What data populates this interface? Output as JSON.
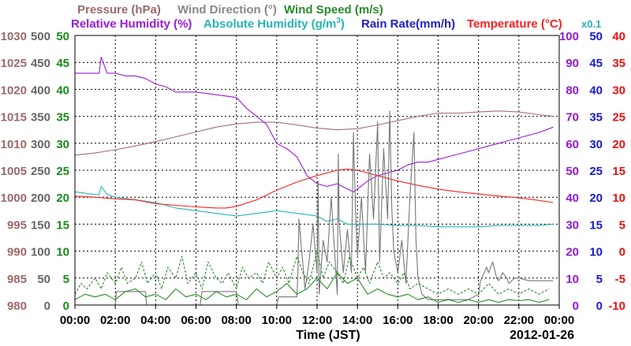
{
  "chart_data": {
    "type": "line",
    "legend": [
      {
        "id": "pressure",
        "label": "Pressure (hPa)",
        "color": "#9b6a6a"
      },
      {
        "id": "wind_dir",
        "label": "Wind Direction (°)",
        "color": "#888888"
      },
      {
        "id": "wind_speed",
        "label": "Wind Speed (m/s)",
        "color": "#2a8a2a"
      },
      {
        "id": "rh",
        "label": "Relative Humidity (%)",
        "color": "#9a1ae0"
      },
      {
        "id": "abs_hum",
        "label": "Absolute Humidity (g/m",
        "label_sup": "3",
        "label_end": ")",
        "color": "#28b4b4"
      },
      {
        "id": "rain",
        "label": "Rain Rate(mm/h)",
        "color": "#1e1ecc"
      },
      {
        "id": "temp",
        "label": "Temperature (°C)",
        "color": "#ff2020"
      },
      {
        "id": "scale",
        "label": "x0.1",
        "color": "#28b4b4"
      }
    ],
    "axes": {
      "pressure": {
        "ticks": [
          "980",
          "985",
          "990",
          "995",
          "1000",
          "1005",
          "1010",
          "1015",
          "1020",
          "1025",
          "1030"
        ],
        "range": [
          980,
          1030
        ],
        "color": "#9b6a6a"
      },
      "wind_dir": {
        "ticks": [
          "0",
          "50",
          "100",
          "150",
          "200",
          "250",
          "300",
          "350",
          "400",
          "450",
          "500"
        ],
        "range": [
          0,
          500
        ],
        "color": "#666666"
      },
      "wind_speed": {
        "ticks": [
          "0",
          "5",
          "10",
          "15",
          "20",
          "25",
          "30",
          "35",
          "40",
          "45",
          "50"
        ],
        "range": [
          0,
          50
        ],
        "color": "#1a8a1a"
      },
      "humidity": {
        "ticks": [
          "0",
          "10",
          "20",
          "30",
          "40",
          "50",
          "60",
          "70",
          "80",
          "90",
          "100"
        ],
        "range": [
          0,
          100
        ],
        "color": "#8e1ad6"
      },
      "rain": {
        "ticks": [
          "0",
          "5",
          "10",
          "15",
          "20",
          "25",
          "30",
          "35",
          "40",
          "45",
          "50"
        ],
        "range": [
          0,
          50
        ],
        "color": "#1a1acc"
      },
      "temp": {
        "ticks": [
          "-10",
          "-5",
          "0",
          "5",
          "10",
          "15",
          "20",
          "25",
          "30",
          "35",
          "40"
        ],
        "range": [
          -10,
          40
        ],
        "color": "#ee1010"
      }
    },
    "x_ticks": [
      "00:00",
      "02:00",
      "04:00",
      "06:00",
      "08:00",
      "10:00",
      "12:00",
      "14:00",
      "16:00",
      "18:00",
      "20:00",
      "22:00",
      "00:00"
    ],
    "x_range_hours": [
      0,
      24
    ],
    "xlabel": "Time (JST)",
    "date": "2012-01-26",
    "grid": true,
    "series": [
      {
        "name": "Pressure (hPa)",
        "axis": "pressure",
        "color": "#a07070",
        "x": [
          0,
          1,
          2,
          3,
          4,
          5,
          6,
          7,
          8,
          9,
          10,
          11,
          12,
          13,
          14,
          15,
          16,
          17,
          18,
          19,
          20,
          21,
          22,
          23,
          23.7
        ],
        "y": [
          1007.8,
          1008.2,
          1008.8,
          1009.5,
          1010.3,
          1011.2,
          1012.1,
          1013.0,
          1013.6,
          1013.9,
          1013.9,
          1013.4,
          1012.8,
          1012.5,
          1012.7,
          1013.4,
          1014.2,
          1015.0,
          1015.6,
          1015.6,
          1015.8,
          1016.0,
          1015.8,
          1015.3,
          1015.0
        ]
      },
      {
        "name": "Relative Humidity (%)",
        "axis": "humidity",
        "color": "#9a1ae0",
        "x": [
          0,
          1.2,
          1.3,
          1.6,
          2.0,
          2.5,
          3.0,
          3.5,
          4.0,
          4.5,
          5.0,
          5.5,
          6.0,
          7.0,
          8.0,
          8.5,
          9.0,
          9.5,
          10.0,
          10.5,
          11.0,
          11.5,
          12.0,
          12.5,
          13.0,
          13.5,
          13.8,
          14.0,
          14.5,
          15.0,
          15.5,
          16.0,
          16.5,
          17.0,
          17.5,
          18.0,
          18.5,
          19.0,
          19.5,
          20.0,
          20.5,
          21.0,
          21.5,
          22.0,
          22.5,
          23.0,
          23.7
        ],
        "y": [
          86,
          86,
          92,
          86,
          86,
          85,
          85,
          84,
          82,
          81,
          79,
          79,
          79,
          78,
          77,
          73,
          70,
          67,
          60,
          58,
          55,
          48,
          45,
          44,
          45,
          43,
          42,
          43,
          46,
          48,
          49,
          50,
          52,
          53,
          53,
          54,
          55,
          56,
          57,
          58,
          59,
          60,
          61,
          62,
          63,
          64,
          66
        ]
      },
      {
        "name": "Absolute Humidity (g/m3) x0.1",
        "axis": "humidity",
        "color": "#28b4b4",
        "x": [
          0,
          1,
          1.2,
          1.3,
          1.6,
          2,
          3,
          4,
          5,
          6,
          7,
          8,
          9,
          10,
          11,
          12,
          12.5,
          13,
          13.5,
          14,
          15,
          16,
          17,
          18,
          19,
          20,
          21,
          22,
          23,
          23.7
        ],
        "y": [
          42,
          41,
          41,
          44,
          41,
          40,
          39,
          38,
          36,
          35,
          34,
          33,
          34,
          35,
          34,
          33,
          31,
          32,
          30,
          30,
          30,
          29.5,
          29.5,
          29,
          29,
          29,
          29.5,
          29.5,
          29.5,
          30
        ]
      },
      {
        "name": "Temperature (°C)",
        "axis": "temp",
        "color": "#ff2020",
        "x": [
          0,
          1,
          2,
          3,
          4,
          5,
          6,
          7,
          7.5,
          8,
          9,
          10,
          11,
          12,
          13,
          13.5,
          14,
          15,
          16,
          17,
          18,
          19,
          20,
          21,
          22,
          23,
          23.7
        ],
        "y": [
          10.2,
          10.0,
          9.7,
          9.5,
          8.8,
          8.5,
          8.2,
          8.0,
          8.0,
          8.3,
          9.5,
          11.3,
          12.8,
          14.0,
          15.0,
          15.2,
          15.0,
          14.0,
          13.0,
          12.2,
          11.5,
          11.0,
          10.6,
          10.2,
          9.9,
          9.4,
          9.0
        ]
      },
      {
        "name": "Wind Direction (°)",
        "axis": "wind_dir",
        "color": "#777777",
        "x": [
          0,
          2,
          2.05,
          3.5,
          3.55,
          6.2,
          6.3,
          8,
          8.1,
          10,
          10.1,
          11,
          11.05,
          11.1,
          11.4,
          11.6,
          11.8,
          12,
          12.05,
          12.1,
          12.3,
          12.5,
          12.7,
          13,
          13.05,
          13.1,
          13.3,
          13.5,
          13.7,
          13.8,
          13.9,
          14,
          14.2,
          14.4,
          14.6,
          14.8,
          15,
          15.05,
          15.1,
          15.3,
          15.5,
          15.6,
          15.7,
          15.8,
          16,
          16.2,
          16.4,
          16.6,
          16.8,
          16.9,
          17,
          17.2,
          17.5,
          18,
          19,
          19.5,
          20,
          20.1,
          20.4,
          20.5,
          20.7,
          20.9,
          21,
          21.2,
          21.4,
          21.5,
          21.8,
          22,
          22.5,
          23,
          23.7
        ],
        "y": [
          0,
          0,
          25,
          25,
          0,
          0,
          25,
          25,
          0,
          0,
          15,
          15,
          60,
          160,
          30,
          80,
          150,
          60,
          230,
          20,
          120,
          80,
          200,
          20,
          280,
          150,
          60,
          140,
          60,
          320,
          180,
          90,
          200,
          60,
          280,
          160,
          340,
          200,
          80,
          290,
          160,
          360,
          180,
          100,
          60,
          120,
          40,
          200,
          320,
          120,
          50,
          20,
          10,
          10,
          10,
          10,
          20,
          45,
          70,
          60,
          80,
          50,
          45,
          60,
          50,
          40,
          50,
          50,
          45,
          45,
          45
        ]
      },
      {
        "name": "Wind Speed (m/s)",
        "axis": "wind_speed",
        "color": "#2a8a2a",
        "x": [
          0,
          0.5,
          1,
          1.5,
          2,
          2.5,
          3,
          3.5,
          4,
          4.5,
          5,
          5.5,
          6,
          6.5,
          7,
          7.5,
          8,
          8.5,
          9,
          9.5,
          10,
          10.5,
          11,
          11.5,
          12,
          12.5,
          13,
          13.5,
          14,
          14.5,
          15,
          15.5,
          16,
          16.5,
          17,
          17.5,
          18,
          18.5,
          19,
          19.5,
          20,
          20.5,
          21,
          21.5,
          22,
          22.5,
          23,
          23.5
        ],
        "y": [
          1,
          2,
          1.5,
          2,
          1,
          2.5,
          3,
          1.5,
          2,
          1,
          3,
          1.5,
          2,
          1,
          2.5,
          1.5,
          2,
          1,
          3,
          1.5,
          2.5,
          4,
          2,
          3,
          5,
          3,
          6,
          4,
          5,
          2,
          3,
          2,
          1.5,
          2,
          1,
          1.5,
          0.5,
          1,
          0.5,
          1,
          0.5,
          1,
          0.5,
          1,
          0.8,
          1,
          0.5,
          1
        ]
      },
      {
        "name": "Wind Speed gust (m/s)",
        "axis": "wind_speed",
        "color": "#2a8a2a",
        "dashed": true,
        "x": [
          0,
          0.3,
          0.6,
          1,
          1.3,
          1.6,
          2,
          2.3,
          2.6,
          3,
          3.3,
          3.6,
          4,
          4.3,
          4.6,
          5,
          5.3,
          5.6,
          6,
          6.3,
          6.6,
          7,
          7.3,
          7.6,
          8,
          8.3,
          8.6,
          9,
          9.3,
          9.6,
          10,
          10.3,
          10.6,
          11,
          11.3,
          11.6,
          12,
          12.3,
          12.6,
          13,
          13.3,
          13.6,
          14,
          14.3,
          14.6,
          15,
          15.3,
          15.6,
          16,
          16.3,
          16.6,
          17,
          17.5,
          18,
          18.5,
          19,
          19.5,
          20,
          20.5,
          21,
          21.5,
          22,
          22.5,
          23,
          23.5
        ],
        "y": [
          2,
          4,
          3,
          5,
          3,
          6,
          4,
          7,
          4,
          5,
          8,
          4,
          6,
          3,
          7,
          5,
          9,
          4,
          6,
          3,
          8,
          5,
          4,
          6,
          3,
          7,
          5,
          6,
          4,
          8,
          5,
          7,
          4,
          9,
          6,
          4,
          10,
          5,
          8,
          6,
          4,
          9,
          5,
          7,
          4,
          8,
          5,
          6,
          4,
          6,
          3,
          4,
          3,
          2,
          3,
          2,
          3,
          2,
          4,
          2,
          3,
          2,
          3,
          2,
          3
        ]
      },
      {
        "name": "Rain Rate(mm/h)",
        "axis": "rain",
        "color": "#1e1ecc",
        "x": [
          0,
          23.7
        ],
        "y": [
          0,
          0
        ]
      }
    ]
  }
}
